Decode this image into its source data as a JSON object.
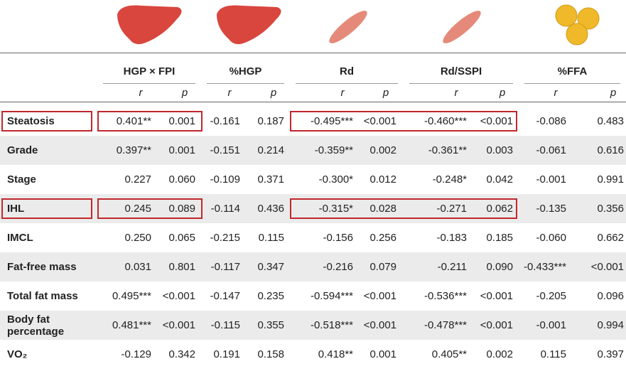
{
  "table": {
    "groups": [
      "HGP × FPI",
      "%HGP",
      "Rd",
      "Rd/SSPI",
      "%FFA"
    ],
    "subheaders": [
      "r",
      "p",
      "r",
      "p",
      "r",
      "p",
      "r",
      "p",
      "r",
      "p"
    ],
    "rows": [
      [
        "Steatosis",
        "0.401**",
        "0.001",
        "-0.161",
        "0.187",
        "-0.495***",
        "<0.001",
        "-0.460***",
        "<0.001",
        "-0.086",
        "0.483"
      ],
      [
        "Grade",
        "0.397**",
        "0.001",
        "-0.151",
        "0.214",
        "-0.359**",
        "0.002",
        "-0.361**",
        "0.003",
        "-0.061",
        "0.616"
      ],
      [
        "Stage",
        "0.227",
        "0.060",
        "-0.109",
        "0.371",
        "-0.300*",
        "0.012",
        "-0.248*",
        "0.042",
        "-0.001",
        "0.991"
      ],
      [
        "IHL",
        "0.245",
        "0.089",
        "-0.114",
        "0.436",
        "-0.315*",
        "0.028",
        "-0.271",
        "0.062",
        "-0.135",
        "0.356"
      ],
      [
        "IMCL",
        "0.250",
        "0.065",
        "-0.215",
        "0.115",
        "-0.156",
        "0.256",
        "-0.183",
        "0.185",
        "-0.060",
        "0.662"
      ],
      [
        "Fat-free mass",
        "0.031",
        "0.801",
        "-0.117",
        "0.347",
        "-0.216",
        "0.079",
        "-0.211",
        "0.090",
        "-0.433***",
        "<0.001"
      ],
      [
        "Total fat mass",
        "0.495***",
        "<0.001",
        "-0.147",
        "0.235",
        "-0.594***",
        "<0.001",
        "-0.536***",
        "<0.001",
        "-0.205",
        "0.096"
      ],
      [
        "Body fat percentage",
        "0.481***",
        "<0.001",
        "-0.115",
        "0.355",
        "-0.518***",
        "<0.001",
        "-0.478***",
        "<0.001",
        "-0.001",
        "0.994"
      ],
      [
        "VO₂",
        "-0.129",
        "0.342",
        "0.191",
        "0.158",
        "0.418**",
        "0.001",
        "0.405**",
        "0.002",
        "0.115",
        "0.397"
      ]
    ]
  }
}
